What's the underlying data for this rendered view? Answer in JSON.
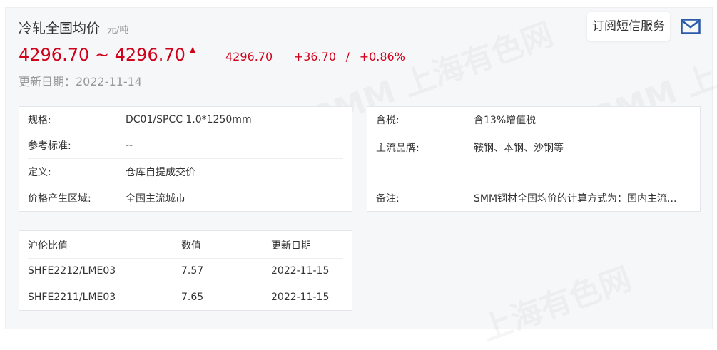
{
  "header": {
    "title": "冷轧全国均价",
    "unit": "元/吨",
    "price_low": "4296.70",
    "tilde": "~",
    "price_high": "4296.70",
    "trend_icon": "up-arrow-icon",
    "avg": "4296.70",
    "change": "+36.70",
    "sep": "/",
    "change_pct": "+0.86%",
    "update_date": "更新日期：2022-11-14",
    "subscribe_label": "订阅短信服务",
    "accent": "#d0021b"
  },
  "info_left": [
    {
      "k": "规格:",
      "v": "DC01/SPCC 1.0*1250mm"
    },
    {
      "k": "参考标准:",
      "v": "--"
    },
    {
      "k": "定义:",
      "v": "仓库自提成交价"
    },
    {
      "k": "价格产生区域:",
      "v": "全国主流城市"
    }
  ],
  "info_right": [
    {
      "k": "含税:",
      "v": "含13%增值税"
    },
    {
      "k": "主流品牌:",
      "v": "鞍钢、本钢、沙钢等"
    },
    {
      "k": "备注:",
      "v": "SMM钢材全国均价的计算方式为：国内主流..."
    }
  ],
  "ratio": {
    "headers": [
      "沪伦比值",
      "数值",
      "更新日期"
    ],
    "rows": [
      [
        "SHFE2212/LME03",
        "7.57",
        "2022-11-15"
      ],
      [
        "SHFE2211/LME03",
        "7.65",
        "2022-11-15"
      ]
    ]
  }
}
